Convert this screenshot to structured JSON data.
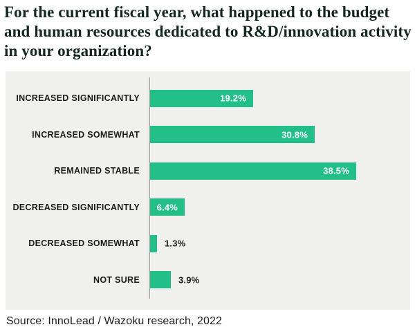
{
  "header": {
    "title_lines": [
      "For the current fiscal year, what happened to the budget",
      "and human resources dedicated to R&D/innovation activity",
      "in your organization?"
    ]
  },
  "chart_data": {
    "type": "bar",
    "orientation": "horizontal",
    "title": "For the current fiscal year, what happened to the budget and human resources dedicated to R&D/innovation activity in your organization?",
    "categories": [
      "INCREASED SIGNIFICANTLY",
      "INCREASED SOMEWHAT",
      "REMAINED STABLE",
      "DECREASED SIGNIFICANTLY",
      "DECREASED SOMEWHAT",
      "NOT SURE"
    ],
    "values": [
      19.2,
      30.8,
      38.5,
      6.4,
      1.3,
      3.9
    ],
    "value_labels": [
      "19.2%",
      "30.8%",
      "38.5%",
      "6.4%",
      "1.3%",
      "3.9%"
    ],
    "label_inside": [
      true,
      true,
      true,
      true,
      false,
      false
    ],
    "xlabel": "",
    "ylabel": "",
    "xlim": [
      0,
      48.6
    ],
    "grid": false,
    "legend": "none",
    "colors": {
      "bar": "#22bf8b",
      "panel_background": "#f0f0ef",
      "title_text": "#13271f",
      "category_text": "#1b1b1b",
      "value_inside_text": "#ffffff",
      "value_outside_text": "#1b1b1b",
      "axis_line": "#b5b5b5"
    }
  },
  "footer": {
    "source": "Source: InnoLead / Wazoku research, 2022"
  }
}
